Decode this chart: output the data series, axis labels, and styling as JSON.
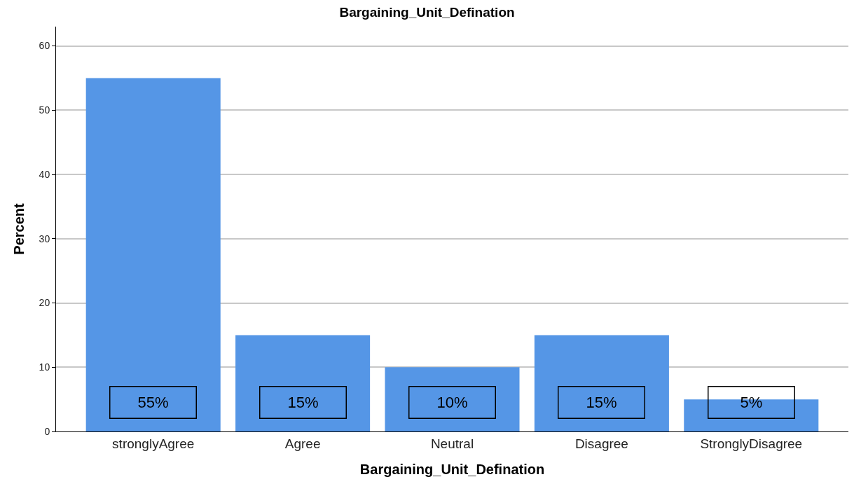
{
  "chart_data": {
    "type": "bar",
    "title": "Bargaining_Unit_Defination",
    "xlabel": "Bargaining_Unit_Defination",
    "ylabel": "Percent",
    "categories": [
      "stronglyAgree",
      "Agree",
      "Neutral",
      "Disagree",
      "StronglyDisagree"
    ],
    "values": [
      55,
      15,
      10,
      15,
      5
    ],
    "value_labels": [
      "55%",
      "15%",
      "10%",
      "15%",
      "5%"
    ],
    "color": "#5596e6",
    "ylim": [
      0,
      63
    ],
    "yticks": [
      0,
      10,
      20,
      30,
      40,
      50,
      60
    ],
    "grid": "y"
  }
}
